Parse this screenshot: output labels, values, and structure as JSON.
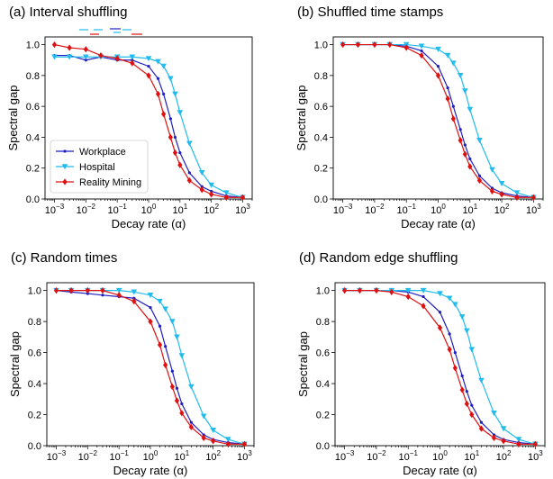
{
  "figure": {
    "layout": "2x2"
  },
  "chart_data": [
    {
      "type": "line",
      "title": "(a) Interval shuffling",
      "xlabel": "Decay rate (α)",
      "ylabel": "Spectral gap",
      "xscale": "log",
      "xlim": [
        0.0005,
        2000
      ],
      "ylim": [
        0,
        1.05
      ],
      "xticks": [
        {
          "exp": "−3"
        },
        {
          "exp": "−2"
        },
        {
          "exp": "−1"
        },
        {
          "exp": "0"
        },
        {
          "exp": "1"
        },
        {
          "exp": "2"
        },
        {
          "exp": "3"
        }
      ],
      "xtick_base": "10",
      "yticks": [
        "0.0",
        "0.2",
        "0.4",
        "0.6",
        "0.8",
        "1.0"
      ],
      "legend": {
        "placement": "lower-left",
        "entries": [
          "Workplace",
          "Hospital",
          "Reality Mining"
        ]
      },
      "markers_above": true,
      "series": [
        {
          "name": "Workplace",
          "color": "#1f1fbf",
          "marker": "dot",
          "x": [
            0.001,
            0.003,
            0.01,
            0.03,
            0.1,
            0.3,
            1,
            2,
            3,
            5,
            7,
            10,
            20,
            50,
            100,
            300,
            1000
          ],
          "y": [
            0.93,
            0.93,
            0.9,
            0.92,
            0.9,
            0.9,
            0.86,
            0.78,
            0.68,
            0.52,
            0.4,
            0.3,
            0.17,
            0.08,
            0.05,
            0.02,
            0.01
          ]
        },
        {
          "name": "Hospital",
          "color": "#22bbee",
          "marker": "triangle-down",
          "x": [
            0.001,
            0.003,
            0.01,
            0.03,
            0.1,
            0.3,
            1,
            2,
            3,
            5,
            7,
            10,
            20,
            50,
            100,
            300,
            1000
          ],
          "y": [
            0.92,
            0.92,
            0.92,
            0.92,
            0.92,
            0.92,
            0.91,
            0.89,
            0.86,
            0.78,
            0.68,
            0.56,
            0.36,
            0.17,
            0.09,
            0.04,
            0.01
          ]
        },
        {
          "name": "Reality Mining",
          "color": "#dd1111",
          "marker": "diamond",
          "x": [
            0.001,
            0.003,
            0.01,
            0.03,
            0.1,
            0.3,
            1,
            2,
            3,
            5,
            7,
            10,
            20,
            50,
            100,
            300,
            1000
          ],
          "y": [
            1.0,
            0.98,
            0.97,
            0.93,
            0.91,
            0.88,
            0.8,
            0.68,
            0.55,
            0.4,
            0.3,
            0.22,
            0.12,
            0.06,
            0.03,
            0.01,
            0.01
          ]
        }
      ]
    },
    {
      "type": "line",
      "title": "(b) Shuffled time stamps",
      "xlabel": "Decay rate (α)",
      "ylabel": "Spectral gap",
      "xscale": "log",
      "xlim": [
        0.0005,
        2000
      ],
      "ylim": [
        0,
        1.05
      ],
      "xticks": [
        {
          "exp": "−3"
        },
        {
          "exp": "−2"
        },
        {
          "exp": "−1"
        },
        {
          "exp": "0"
        },
        {
          "exp": "1"
        },
        {
          "exp": "2"
        },
        {
          "exp": "3"
        }
      ],
      "xtick_base": "10",
      "yticks": [
        "0.0",
        "0.2",
        "0.4",
        "0.6",
        "0.8",
        "1.0"
      ],
      "series": [
        {
          "name": "Workplace",
          "color": "#1f1fbf",
          "marker": "dot",
          "x": [
            0.001,
            0.003,
            0.01,
            0.03,
            0.1,
            0.3,
            1,
            2,
            3,
            5,
            7,
            10,
            20,
            50,
            100,
            300,
            1000
          ],
          "y": [
            1.0,
            1.0,
            1.0,
            1.0,
            0.99,
            0.96,
            0.86,
            0.72,
            0.6,
            0.45,
            0.35,
            0.26,
            0.15,
            0.07,
            0.04,
            0.02,
            0.01
          ]
        },
        {
          "name": "Hospital",
          "color": "#22bbee",
          "marker": "triangle-down",
          "x": [
            0.001,
            0.003,
            0.01,
            0.03,
            0.1,
            0.3,
            1,
            2,
            3,
            5,
            7,
            10,
            20,
            50,
            100,
            300,
            1000
          ],
          "y": [
            1.0,
            1.0,
            1.0,
            1.0,
            1.0,
            0.99,
            0.97,
            0.93,
            0.88,
            0.8,
            0.7,
            0.58,
            0.38,
            0.19,
            0.1,
            0.04,
            0.01
          ]
        },
        {
          "name": "Reality Mining",
          "color": "#dd1111",
          "marker": "diamond",
          "x": [
            0.001,
            0.003,
            0.01,
            0.03,
            0.1,
            0.3,
            1,
            2,
            3,
            5,
            7,
            10,
            20,
            50,
            100,
            300,
            1000
          ],
          "y": [
            1.0,
            1.0,
            1.0,
            1.0,
            0.98,
            0.93,
            0.8,
            0.65,
            0.52,
            0.38,
            0.29,
            0.21,
            0.12,
            0.05,
            0.03,
            0.01,
            0.01
          ]
        }
      ]
    },
    {
      "type": "line",
      "title": "(c) Random times",
      "xlabel": "Decay rate (α)",
      "ylabel": "Spectral gap",
      "xscale": "log",
      "xlim": [
        0.0005,
        2000
      ],
      "ylim": [
        0,
        1.05
      ],
      "xticks": [
        {
          "exp": "−3"
        },
        {
          "exp": "−2"
        },
        {
          "exp": "−1"
        },
        {
          "exp": "0"
        },
        {
          "exp": "1"
        },
        {
          "exp": "2"
        },
        {
          "exp": "3"
        }
      ],
      "xtick_base": "10",
      "yticks": [
        "0.0",
        "0.2",
        "0.4",
        "0.6",
        "0.8",
        "1.0"
      ],
      "series": [
        {
          "name": "Workplace",
          "color": "#1f1fbf",
          "marker": "dot",
          "x": [
            0.001,
            0.003,
            0.01,
            0.03,
            0.1,
            0.3,
            1,
            2,
            3,
            5,
            7,
            10,
            20,
            50,
            100,
            300,
            1000
          ],
          "y": [
            1.0,
            0.99,
            0.98,
            0.97,
            0.96,
            0.95,
            0.89,
            0.77,
            0.64,
            0.48,
            0.37,
            0.27,
            0.15,
            0.07,
            0.04,
            0.02,
            0.01
          ]
        },
        {
          "name": "Hospital",
          "color": "#22bbee",
          "marker": "triangle-down",
          "x": [
            0.001,
            0.003,
            0.01,
            0.03,
            0.1,
            0.3,
            1,
            2,
            3,
            5,
            7,
            10,
            20,
            50,
            100,
            300,
            1000
          ],
          "y": [
            1.0,
            1.0,
            1.0,
            1.0,
            1.0,
            0.99,
            0.97,
            0.93,
            0.88,
            0.8,
            0.7,
            0.58,
            0.38,
            0.19,
            0.1,
            0.04,
            0.01
          ]
        },
        {
          "name": "Reality Mining",
          "color": "#dd1111",
          "marker": "diamond",
          "x": [
            0.001,
            0.003,
            0.01,
            0.03,
            0.1,
            0.3,
            1,
            2,
            3,
            5,
            7,
            10,
            20,
            50,
            100,
            300,
            1000
          ],
          "y": [
            1.0,
            1.0,
            1.0,
            1.0,
            0.97,
            0.93,
            0.8,
            0.65,
            0.52,
            0.38,
            0.29,
            0.21,
            0.12,
            0.05,
            0.03,
            0.01,
            0.01
          ]
        }
      ]
    },
    {
      "type": "line",
      "title": "(d) Random edge shuffling",
      "xlabel": "Decay rate (α)",
      "ylabel": "Spectral gap",
      "xscale": "log",
      "xlim": [
        0.0005,
        2000
      ],
      "ylim": [
        0,
        1.05
      ],
      "xticks": [
        {
          "exp": "−3"
        },
        {
          "exp": "−2"
        },
        {
          "exp": "−1"
        },
        {
          "exp": "0"
        },
        {
          "exp": "1"
        },
        {
          "exp": "2"
        },
        {
          "exp": "3"
        }
      ],
      "xtick_base": "10",
      "yticks": [
        "0.0",
        "0.2",
        "0.4",
        "0.6",
        "0.8",
        "1.0"
      ],
      "series": [
        {
          "name": "Workplace",
          "color": "#1f1fbf",
          "marker": "dot",
          "x": [
            0.001,
            0.003,
            0.01,
            0.03,
            0.1,
            0.3,
            1,
            2,
            3,
            5,
            7,
            10,
            20,
            50,
            100,
            300,
            1000
          ],
          "y": [
            1.0,
            1.0,
            1.0,
            1.0,
            0.99,
            0.96,
            0.86,
            0.72,
            0.6,
            0.45,
            0.35,
            0.26,
            0.15,
            0.07,
            0.04,
            0.02,
            0.01
          ]
        },
        {
          "name": "Hospital",
          "color": "#22bbee",
          "marker": "triangle-down",
          "x": [
            0.001,
            0.003,
            0.01,
            0.03,
            0.1,
            0.3,
            1,
            2,
            3,
            5,
            7,
            10,
            20,
            50,
            100,
            300,
            1000
          ],
          "y": [
            1.0,
            1.0,
            1.0,
            1.0,
            1.0,
            1.0,
            0.98,
            0.95,
            0.91,
            0.83,
            0.74,
            0.62,
            0.42,
            0.21,
            0.11,
            0.04,
            0.01
          ]
        },
        {
          "name": "Reality Mining",
          "color": "#dd1111",
          "marker": "diamond",
          "x": [
            0.001,
            0.003,
            0.01,
            0.03,
            0.1,
            0.3,
            1,
            2,
            3,
            5,
            7,
            10,
            20,
            50,
            100,
            300,
            1000
          ],
          "y": [
            1.0,
            1.0,
            1.0,
            0.99,
            0.96,
            0.9,
            0.76,
            0.62,
            0.5,
            0.36,
            0.27,
            0.2,
            0.11,
            0.05,
            0.03,
            0.01,
            0.01
          ]
        }
      ]
    }
  ]
}
